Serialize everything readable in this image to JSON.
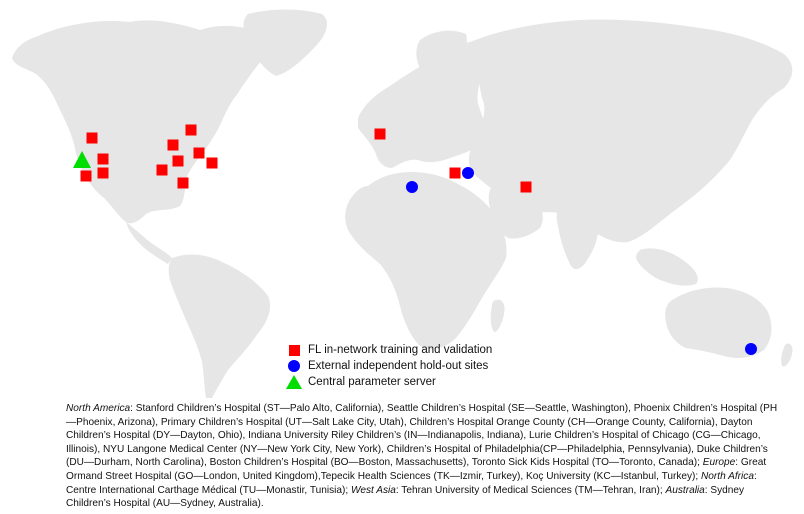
{
  "map": {
    "land_color": "#e6e6e6",
    "sites": [
      {
        "code": "ST",
        "type": "training"
      },
      {
        "code": "SE",
        "type": "training"
      },
      {
        "code": "PH",
        "type": "training"
      },
      {
        "code": "UT",
        "type": "training"
      },
      {
        "code": "CH",
        "type": "training"
      },
      {
        "code": "DY",
        "type": "training"
      },
      {
        "code": "IN",
        "type": "training"
      },
      {
        "code": "CG",
        "type": "training"
      },
      {
        "code": "NY",
        "type": "training"
      },
      {
        "code": "CP",
        "type": "training"
      },
      {
        "code": "DU",
        "type": "training"
      },
      {
        "code": "BO",
        "type": "training"
      },
      {
        "code": "TO",
        "type": "training"
      },
      {
        "code": "GO",
        "type": "training"
      },
      {
        "code": "TK",
        "type": "training"
      },
      {
        "code": "TM",
        "type": "training"
      },
      {
        "code": "TU",
        "type": "holdout"
      },
      {
        "code": "KC",
        "type": "holdout"
      },
      {
        "code": "AU",
        "type": "holdout"
      },
      {
        "code": "server",
        "type": "server"
      }
    ],
    "colors": {
      "training": "#ff0000",
      "holdout": "#0000ff",
      "server": "#00dd00"
    }
  },
  "legend": {
    "training": "FL in-network training and validation",
    "holdout": "External independent hold-out sites",
    "server": "Central parameter server"
  },
  "caption": {
    "north_america_label": "North America",
    "north_america_text": ": Stanford Children’s Hospital (ST—Palo Alto, California), Seattle Children’s Hospital (SE—Seattle, Washington), Phoenix Children’s Hospital (PH—Phoenix, Arizona), Primary Children’s Hospital (UT—Salt Lake City, Utah), Children’s Hospital Orange County (CH—Orange County, California), Dayton Children’s Hospital (DY—Dayton, Ohio), Indiana University Riley Children’s (IN—Indianapolis, Indiana), Lurie Children’s Hospital of Chicago (CG—Chicago, Illinois), NYU Langone Medical Center (NY—New York City, New York), Children’s Hospital of Philadelphia(CP—Philadelphia, Pennsylvania), Duke Children’s (DU—Durham, North Carolina), Boston Children’s Hospital (BO—Boston, Massachusetts), Toronto Sick Kids Hospital (TO—Toronto, Canada); ",
    "europe_label": "Europe",
    "europe_text": ": Great Ormand Street Hospital (GO—London, United Kingdom),Tepecik Health Sciences (TK—Izmir, Turkey), Koç University (KC—Istanbul, Turkey); ",
    "north_africa_label": "North Africa",
    "north_africa_text": ": Centre International Carthage Médical (TU—Monastir, Tunisia); ",
    "west_asia_label": "West Asia",
    "west_asia_text": ": Tehran University of Medical Sciences (TM—Tehran, Iran); ",
    "australia_label": "Australia",
    "australia_text": ": Sydney Children’s Hospital (AU—Sydney, Australia)."
  }
}
